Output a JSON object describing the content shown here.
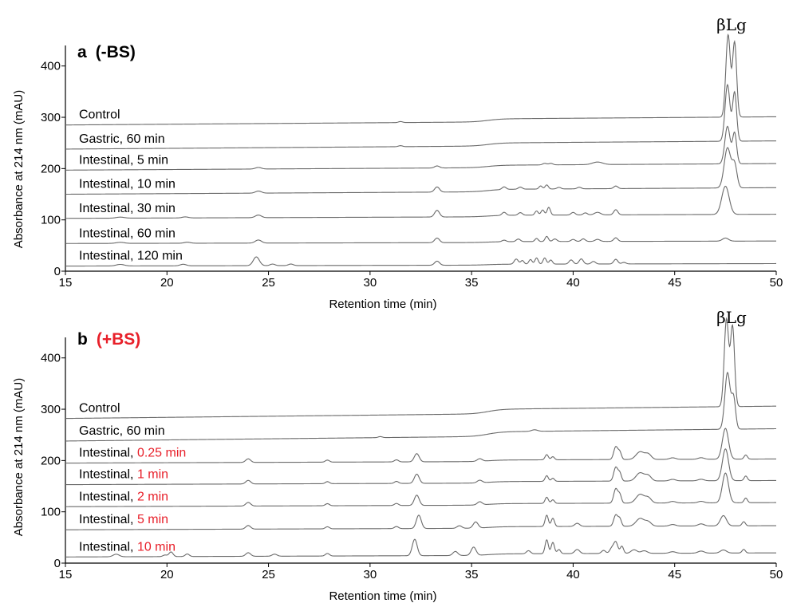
{
  "chart_data": [
    {
      "type": "line",
      "panel": "a",
      "title": "a",
      "title_suffix": "(-BS)",
      "title_color": "#000000",
      "peak_label": "βLg",
      "peak_position": 47.6,
      "xlabel": "Retention time (min)",
      "ylabel": "Absorbance at 214 nm (mAU)",
      "xlim": [
        15,
        50
      ],
      "ylim": [
        0,
        440
      ],
      "xticks": [
        15,
        20,
        25,
        30,
        35,
        40,
        45,
        50
      ],
      "yticks": [
        0,
        100,
        200,
        300,
        400
      ],
      "grid": false,
      "series": [
        {
          "name": "Control",
          "name_prefix": "Control",
          "name_suffix": "",
          "baseline": 285,
          "drift": 10,
          "peaks": [
            [
              31.5,
              2,
              0.1
            ],
            [
              47.63,
              160,
              0.11
            ],
            [
              47.95,
              145,
              0.1
            ]
          ]
        },
        {
          "name": "Gastric, 60 min",
          "name_prefix": "Gastric, 60 min",
          "name_suffix": "",
          "baseline": 238,
          "drift": 10,
          "peaks": [
            [
              31.5,
              2,
              0.1
            ],
            [
              47.6,
              110,
              0.12
            ],
            [
              47.95,
              95,
              0.1
            ]
          ]
        },
        {
          "name": "Intestinal, 5 min",
          "name_prefix": "Intestinal, 5 min",
          "name_suffix": "",
          "baseline": 197,
          "drift": 8,
          "peaks": [
            [
              24.5,
              3,
              0.15
            ],
            [
              33.3,
              4,
              0.12
            ],
            [
              38.6,
              3,
              0.1
            ],
            [
              38.9,
              3,
              0.1
            ],
            [
              41.2,
              5,
              0.25
            ],
            [
              47.6,
              73,
              0.13
            ],
            [
              47.95,
              60,
              0.1
            ]
          ]
        },
        {
          "name": "Intestinal, 10 min",
          "name_prefix": "Intestinal, 10 min",
          "name_suffix": "",
          "baseline": 150,
          "drift": 8,
          "peaks": [
            [
              24.5,
              4,
              0.15
            ],
            [
              33.3,
              10,
              0.12
            ],
            [
              36.6,
              5,
              0.1
            ],
            [
              37.4,
              4,
              0.1
            ],
            [
              38.4,
              6,
              0.08
            ],
            [
              38.7,
              8,
              0.08
            ],
            [
              39.3,
              3,
              0.1
            ],
            [
              40.3,
              3,
              0.1
            ],
            [
              42.1,
              5,
              0.1
            ],
            [
              47.6,
              78,
              0.16
            ],
            [
              47.95,
              45,
              0.12
            ]
          ]
        },
        {
          "name": "Intestinal, 30 min",
          "name_prefix": "Intestinal, 30 min",
          "name_suffix": "",
          "baseline": 103,
          "drift": 5,
          "peaks": [
            [
              17.7,
              2,
              0.2
            ],
            [
              20.9,
              2,
              0.15
            ],
            [
              24.5,
              5,
              0.15
            ],
            [
              33.3,
              13,
              0.12
            ],
            [
              36.6,
              6,
              0.1
            ],
            [
              37.4,
              5,
              0.1
            ],
            [
              38.2,
              8,
              0.08
            ],
            [
              38.5,
              10,
              0.08
            ],
            [
              38.8,
              15,
              0.08
            ],
            [
              40.0,
              5,
              0.1
            ],
            [
              40.6,
              4,
              0.1
            ],
            [
              41.2,
              5,
              0.15
            ],
            [
              42.1,
              10,
              0.1
            ],
            [
              47.5,
              55,
              0.18
            ]
          ]
        },
        {
          "name": "Intestinal, 60 min",
          "name_prefix": "Intestinal, 60 min",
          "name_suffix": "",
          "baseline": 54,
          "drift": 3,
          "peaks": [
            [
              17.7,
              2,
              0.2
            ],
            [
              21.0,
              2,
              0.15
            ],
            [
              24.5,
              6,
              0.15
            ],
            [
              33.3,
              9,
              0.12
            ],
            [
              36.6,
              3,
              0.1
            ],
            [
              37.3,
              5,
              0.1
            ],
            [
              38.2,
              6,
              0.08
            ],
            [
              38.7,
              10,
              0.08
            ],
            [
              39.1,
              5,
              0.1
            ],
            [
              40.0,
              4,
              0.1
            ],
            [
              40.5,
              5,
              0.1
            ],
            [
              41.2,
              4,
              0.12
            ],
            [
              42.1,
              7,
              0.1
            ],
            [
              47.5,
              6,
              0.15
            ]
          ]
        },
        {
          "name": "Intestinal, 120 min",
          "name_prefix": "Intestinal, 120 min",
          "name_suffix": "",
          "baseline": 10,
          "drift": 3,
          "peaks": [
            [
              17.7,
              3,
              0.2
            ],
            [
              20.8,
              3,
              0.15
            ],
            [
              24.4,
              17,
              0.15
            ],
            [
              25.2,
              3,
              0.12
            ],
            [
              26.1,
              3,
              0.12
            ],
            [
              33.3,
              8,
              0.12
            ],
            [
              37.2,
              10,
              0.1
            ],
            [
              37.5,
              7,
              0.08
            ],
            [
              37.9,
              9,
              0.08
            ],
            [
              38.2,
              12,
              0.08
            ],
            [
              38.6,
              12,
              0.08
            ],
            [
              38.9,
              8,
              0.08
            ],
            [
              39.9,
              8,
              0.1
            ],
            [
              40.4,
              10,
              0.1
            ],
            [
              41.0,
              5,
              0.1
            ],
            [
              42.1,
              9,
              0.1
            ],
            [
              42.5,
              3,
              0.1
            ]
          ]
        }
      ]
    },
    {
      "type": "line",
      "panel": "b",
      "title": "b",
      "title_suffix": "(+BS)",
      "title_color": "#e8202a",
      "peak_label": "βLg",
      "peak_position": 47.6,
      "xlabel": "Retention time (min)",
      "ylabel": "Absorbance at 214 nm (mAU)",
      "xlim": [
        15,
        50
      ],
      "ylim": [
        0,
        440
      ],
      "xticks": [
        15,
        20,
        25,
        30,
        35,
        40,
        45,
        50
      ],
      "yticks": [
        0,
        100,
        200,
        300,
        400
      ],
      "grid": false,
      "series": [
        {
          "name": "Control",
          "name_prefix": "Control",
          "name_suffix": "",
          "baseline": 282,
          "drift": 15,
          "peaks": [
            [
              47.55,
              170,
              0.11
            ],
            [
              47.85,
              155,
              0.1
            ]
          ]
        },
        {
          "name": "Gastric, 60 min",
          "name_prefix": "Gastric, 60 min",
          "name_suffix": "",
          "baseline": 238,
          "drift": 15,
          "peaks": [
            [
              30.5,
              2,
              0.1
            ],
            [
              38.1,
              3,
              0.15
            ],
            [
              47.6,
              110,
              0.13
            ],
            [
              47.9,
              60,
              0.1
            ]
          ]
        },
        {
          "name": "Intestinal, 0.25 min",
          "name_prefix": "Intestinal, ",
          "name_suffix": "0.25 min",
          "baseline": 195,
          "drift": 5,
          "peaks": [
            [
              24.0,
              7,
              0.12
            ],
            [
              27.9,
              4,
              0.1
            ],
            [
              31.3,
              4,
              0.1
            ],
            [
              32.3,
              16,
              0.12
            ],
            [
              35.4,
              5,
              0.12
            ],
            [
              38.7,
              10,
              0.08
            ],
            [
              39.0,
              6,
              0.08
            ],
            [
              42.1,
              25,
              0.1
            ],
            [
              42.3,
              14,
              0.08
            ],
            [
              43.3,
              15,
              0.2
            ],
            [
              43.7,
              10,
              0.15
            ],
            [
              44.9,
              3,
              0.15
            ],
            [
              46.3,
              3,
              0.15
            ],
            [
              47.5,
              60,
              0.15
            ],
            [
              48.5,
              8,
              0.08
            ]
          ]
        },
        {
          "name": "Intestinal, 1 min",
          "name_prefix": "Intestinal, ",
          "name_suffix": "1 min",
          "baseline": 153,
          "drift": 5,
          "peaks": [
            [
              24.0,
              7,
              0.12
            ],
            [
              27.9,
              4,
              0.1
            ],
            [
              31.3,
              4,
              0.1
            ],
            [
              32.3,
              18,
              0.12
            ],
            [
              35.4,
              5,
              0.12
            ],
            [
              38.7,
              11,
              0.08
            ],
            [
              39.0,
              6,
              0.08
            ],
            [
              42.1,
              27,
              0.1
            ],
            [
              42.3,
              15,
              0.08
            ],
            [
              43.3,
              16,
              0.2
            ],
            [
              43.7,
              10,
              0.15
            ],
            [
              44.9,
              3,
              0.15
            ],
            [
              46.3,
              3,
              0.15
            ],
            [
              47.5,
              62,
              0.15
            ],
            [
              48.5,
              9,
              0.08
            ]
          ]
        },
        {
          "name": "Intestinal, 2 min",
          "name_prefix": "Intestinal, ",
          "name_suffix": "2 min",
          "baseline": 110,
          "drift": 5,
          "peaks": [
            [
              24.0,
              7,
              0.12
            ],
            [
              27.9,
              4,
              0.1
            ],
            [
              31.3,
              4,
              0.1
            ],
            [
              32.3,
              20,
              0.12
            ],
            [
              35.4,
              6,
              0.12
            ],
            [
              38.7,
              12,
              0.08
            ],
            [
              39.0,
              7,
              0.08
            ],
            [
              42.1,
              28,
              0.1
            ],
            [
              42.3,
              16,
              0.08
            ],
            [
              43.3,
              17,
              0.2
            ],
            [
              43.7,
              10,
              0.15
            ],
            [
              44.9,
              3,
              0.15
            ],
            [
              46.3,
              3,
              0.15
            ],
            [
              47.5,
              58,
              0.15
            ],
            [
              48.5,
              9,
              0.08
            ]
          ]
        },
        {
          "name": "Intestinal, 5 min",
          "name_prefix": "Intestinal, ",
          "name_suffix": "5 min",
          "baseline": 65,
          "drift": 5,
          "peaks": [
            [
              24.0,
              7,
              0.12
            ],
            [
              27.9,
              4,
              0.1
            ],
            [
              31.3,
              4,
              0.1
            ],
            [
              32.4,
              26,
              0.12
            ],
            [
              34.4,
              5,
              0.12
            ],
            [
              35.2,
              12,
              0.12
            ],
            [
              38.7,
              22,
              0.08
            ],
            [
              39.0,
              16,
              0.08
            ],
            [
              40.2,
              6,
              0.12
            ],
            [
              42.1,
              22,
              0.1
            ],
            [
              42.3,
              14,
              0.08
            ],
            [
              43.3,
              15,
              0.2
            ],
            [
              43.7,
              8,
              0.15
            ],
            [
              44.9,
              3,
              0.15
            ],
            [
              46.3,
              4,
              0.15
            ],
            [
              47.4,
              20,
              0.15
            ],
            [
              48.4,
              8,
              0.08
            ]
          ]
        },
        {
          "name": "Intestinal, 10 min",
          "name_prefix": "Intestinal, ",
          "name_suffix": "10 min",
          "baseline": 12,
          "drift": 5,
          "peaks": [
            [
              17.5,
              5,
              0.15
            ],
            [
              19.9,
              3,
              0.1
            ],
            [
              20.2,
              9,
              0.1
            ],
            [
              21.0,
              5,
              0.1
            ],
            [
              24.0,
              7,
              0.12
            ],
            [
              25.3,
              4,
              0.12
            ],
            [
              27.9,
              5,
              0.1
            ],
            [
              32.2,
              32,
              0.12
            ],
            [
              34.2,
              8,
              0.12
            ],
            [
              35.1,
              16,
              0.12
            ],
            [
              37.8,
              6,
              0.1
            ],
            [
              38.7,
              27,
              0.08
            ],
            [
              39.0,
              22,
              0.08
            ],
            [
              39.3,
              8,
              0.08
            ],
            [
              40.2,
              8,
              0.12
            ],
            [
              41.5,
              6,
              0.1
            ],
            [
              41.9,
              10,
              0.1
            ],
            [
              42.1,
              22,
              0.1
            ],
            [
              42.4,
              14,
              0.08
            ],
            [
              43.0,
              7,
              0.15
            ],
            [
              43.5,
              5,
              0.15
            ],
            [
              44.9,
              3,
              0.15
            ],
            [
              46.3,
              4,
              0.15
            ],
            [
              47.4,
              6,
              0.15
            ],
            [
              48.4,
              7,
              0.08
            ]
          ]
        }
      ]
    }
  ]
}
